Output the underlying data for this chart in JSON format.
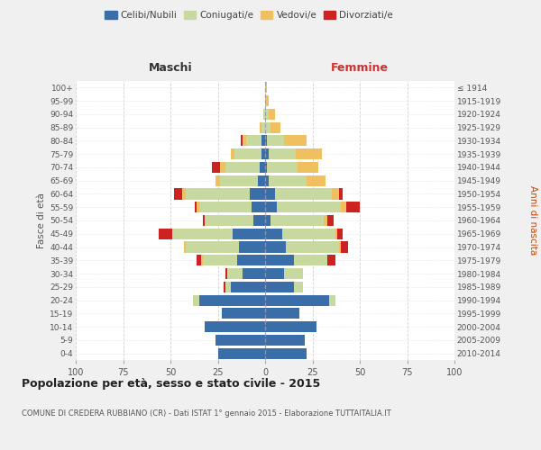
{
  "age_groups": [
    "0-4",
    "5-9",
    "10-14",
    "15-19",
    "20-24",
    "25-29",
    "30-34",
    "35-39",
    "40-44",
    "45-49",
    "50-54",
    "55-59",
    "60-64",
    "65-69",
    "70-74",
    "75-79",
    "80-84",
    "85-89",
    "90-94",
    "95-99",
    "100+"
  ],
  "birth_years": [
    "2010-2014",
    "2005-2009",
    "2000-2004",
    "1995-1999",
    "1990-1994",
    "1985-1989",
    "1980-1984",
    "1975-1979",
    "1970-1974",
    "1965-1969",
    "1960-1964",
    "1955-1959",
    "1950-1954",
    "1945-1949",
    "1940-1944",
    "1935-1939",
    "1930-1934",
    "1925-1929",
    "1920-1924",
    "1915-1919",
    "≤ 1914"
  ],
  "colors": {
    "celibe": "#3a6ea8",
    "coniugato": "#c8d9a0",
    "vedovo": "#f0c060",
    "divorziato": "#cc2222"
  },
  "maschi": {
    "celibe": [
      25,
      26,
      32,
      23,
      35,
      18,
      12,
      15,
      14,
      17,
      6,
      7,
      8,
      4,
      3,
      2,
      2,
      0,
      0,
      0,
      0
    ],
    "coniugato": [
      0,
      0,
      0,
      0,
      3,
      3,
      8,
      18,
      28,
      32,
      26,
      28,
      34,
      20,
      18,
      14,
      8,
      2,
      1,
      0,
      0
    ],
    "vedovo": [
      0,
      0,
      0,
      0,
      0,
      0,
      0,
      1,
      1,
      0,
      0,
      1,
      2,
      2,
      3,
      2,
      2,
      1,
      0,
      0,
      0
    ],
    "divorziato": [
      0,
      0,
      0,
      0,
      0,
      1,
      1,
      2,
      0,
      7,
      1,
      1,
      4,
      0,
      4,
      0,
      1,
      0,
      0,
      0,
      0
    ]
  },
  "femmine": {
    "nubile": [
      22,
      21,
      27,
      18,
      34,
      15,
      10,
      15,
      11,
      9,
      3,
      6,
      5,
      2,
      1,
      2,
      1,
      0,
      0,
      0,
      0
    ],
    "coniugata": [
      0,
      0,
      0,
      0,
      3,
      5,
      10,
      18,
      28,
      28,
      28,
      34,
      30,
      20,
      16,
      14,
      9,
      3,
      2,
      0,
      0
    ],
    "vedova": [
      0,
      0,
      0,
      0,
      0,
      0,
      0,
      0,
      1,
      1,
      2,
      3,
      4,
      10,
      11,
      14,
      12,
      5,
      3,
      2,
      1
    ],
    "divorziata": [
      0,
      0,
      0,
      0,
      0,
      0,
      0,
      4,
      4,
      3,
      3,
      7,
      2,
      0,
      0,
      0,
      0,
      0,
      0,
      0,
      0
    ]
  },
  "xlim": 100,
  "title": "Popolazione per età, sesso e stato civile - 2015",
  "subtitle": "COMUNE DI CREDERA RUBBIANO (CR) - Dati ISTAT 1° gennaio 2015 - Elaborazione TUTTAITALIA.IT",
  "xlabel_left": "Maschi",
  "xlabel_right": "Femmine",
  "ylabel_left": "Fasce di età",
  "ylabel_right": "Anni di nascita",
  "bg_color": "#f0f0f0",
  "plot_bg_color": "#ffffff",
  "grid_color": "#cccccc"
}
